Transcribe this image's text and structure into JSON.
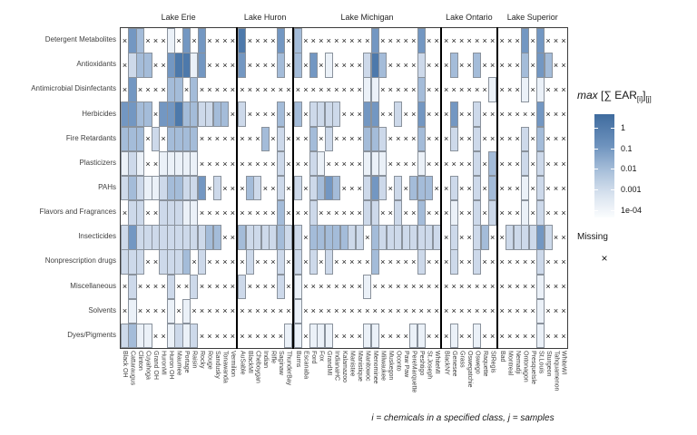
{
  "chart_data": {
    "type": "heatmap",
    "title": "",
    "xlabel": "",
    "ylabel": "",
    "legend_title": "max [∑ EAR[i]][j]",
    "value_scale": {
      "type": "log",
      "ticks": [
        "1",
        "0.1",
        "0.01",
        "0.001",
        "1e-04"
      ]
    },
    "missing_symbol": "×",
    "intensity_levels": {
      "1": "~1e-04 to 0.001",
      "2": "~0.001 to 0.01",
      "3": "~0.01 to 0.1",
      "4": "~0.1 to 1",
      "5": "~1"
    },
    "rows": [
      "Detergent Metabolites",
      "Antioxidants",
      "Antimicrobial Disinfectants",
      "Herbicides",
      "Fire Retardants",
      "Plasticizers",
      "PAHs",
      "Flavors and Fragrances",
      "Insecticides",
      "Nonprescription drugs",
      "Miscellaneous",
      "Solvents",
      "Dyes/Pigments"
    ],
    "facets": [
      {
        "lake": "Lake Erie",
        "sites": [
          "Black OH",
          "Cattaraugus",
          "Clinton",
          "Cuyahoga",
          "Grand OH",
          "HuronMI",
          "Huron OH",
          "Maumee",
          "Portage",
          "Raisin",
          "Rocky",
          "Rouge",
          "Sandusky",
          "Tonawanda",
          "Vermilion"
        ],
        "cells": [
          "x43xxx1x4x4xxxx",
          "x233xx45514xxxx",
          "x4xxxx33x3xxxxx",
          "4433x445332233x",
          "333x2x3333xxxxx",
          "121xx11111xxxxx",
          "23211233224x2xx",
          "x22xx22211xxxxx",
          "2422222222233xx",
          "222xx2223x2xxxx",
          "x2xxxx2xx2xxxxx",
          "x1xxxx1x1xxxxxx",
          "2311xx1212xxxxx"
        ]
      },
      {
        "lake": "Lake Huron",
        "sites": [
          "AuSable",
          "BlackMI",
          "Cheboygan",
          "Indian",
          "Rifle",
          "Saginaw",
          "ThunderBay"
        ],
        "cells": [
          "5xxxx4x",
          "4xxxx3x",
          "xxxxxxx",
          "2xxxx3x",
          "xxx3x2x",
          "xxxxx2x",
          "x32xx2x",
          "xxxxx3x",
          "3222232",
          "x2xxx2x",
          "2xxxx2x",
          "xxxxxxx",
          "xxxxxx1"
        ]
      },
      {
        "lake": "Lake Michigan",
        "sites": [
          "Burns",
          "Escanaba",
          "Ford",
          "Fox",
          "GrandMI",
          "IndianaHC",
          "Kalamazoo",
          "Manistee",
          "Manistique",
          "Manitowoc",
          "Menominee",
          "Milwaukee",
          "Muskegon",
          "Oconto",
          "Paw Paw",
          "PereMarquette",
          "Peshtigo",
          "St.Joseph",
          "WhiteMI"
        ],
        "cells": [
          "3xxxxxxxxx4xxxxx4xx",
          "3x4x1xxxx253xxxx2xx",
          "xxxxxxxxx11xxxxx3xx",
          "3x2222xxx44xx2xx4xx",
          "xx3x2xxxx332xxxx3xx",
          "xx21xxxxx111xxxx1xx",
          "2x2343xxx242x2x333x",
          "xx2xxxxxx22xx2xx3xx",
          "2x3333322x322222222",
          "2x2x2xxxxx3xxxxx2xx",
          "1xxxxxxxx1xxxxxxxxx",
          "1xxxxxxxxxxxxxxxxxx",
          "1x111xxxx11xxxx11xx"
        ]
      },
      {
        "lake": "Lake Ontario",
        "sites": [
          "BlackNY",
          "Genesee",
          "Grass",
          "Oswegatchie",
          "Oswego",
          "Raquette",
          "StRegis"
        ],
        "cells": [
          "xxxxxxx",
          "x3xx3xx",
          "xxxxxx1",
          "x4xx2xx",
          "x2xx2xx",
          "xxxx2x3",
          "x2xx2x3",
          "x1xx2x2",
          "x2xx23x",
          "x2xx2xx",
          "xxxxxxx",
          "xxxxxxx",
          "x1xx1xx"
        ]
      },
      {
        "lake": "Lake Superior",
        "sites": [
          "Bad",
          "Montreal",
          "Nemadji",
          "Ontonagon",
          "PresqueIsle",
          "St.Louis",
          "Sturgeon",
          "Tahquamenon",
          "WhiteWI"
        ],
        "cells": [
          "xxx4x4xxx",
          "xxx3x43xx",
          "xxx1x1xxx",
          "xxxxx4xxx",
          "xxx2x3xxx",
          "xxx2x2xxx",
          "xxx1x2xxx",
          "xxx1x2xxx",
          "x222242xx",
          "xxxxx2xxx",
          "xxxxx1xxx",
          "xxxxx1xxx",
          "xxxxx1xxx"
        ]
      }
    ]
  },
  "legend": {
    "title_max": "max",
    "title_open": " [",
    "title_sigma": "∑",
    "title_ear": " EAR",
    "title_sub_i": "[i]",
    "title_close": "]",
    "title_sub_j": "[j]",
    "ticks": [
      "1",
      "0.1",
      "0.01",
      "0.001",
      "1e-04"
    ],
    "missing_label": "Missing",
    "missing_symbol": "×"
  },
  "caption": "i = chemicals in a specified class, j = samples",
  "colors": {
    "levels": {
      "1": "#ebf1f8",
      "2": "#cdd9ea",
      "3": "#a4bcd9",
      "4": "#7397c2",
      "5": "#4d79ab"
    },
    "gradient_top": "#3f6b9e",
    "gradient_bottom": "#fbfdfe",
    "tile_border": "#8a929c",
    "missing": "#141414",
    "panel_border": "#3c3c3c"
  }
}
